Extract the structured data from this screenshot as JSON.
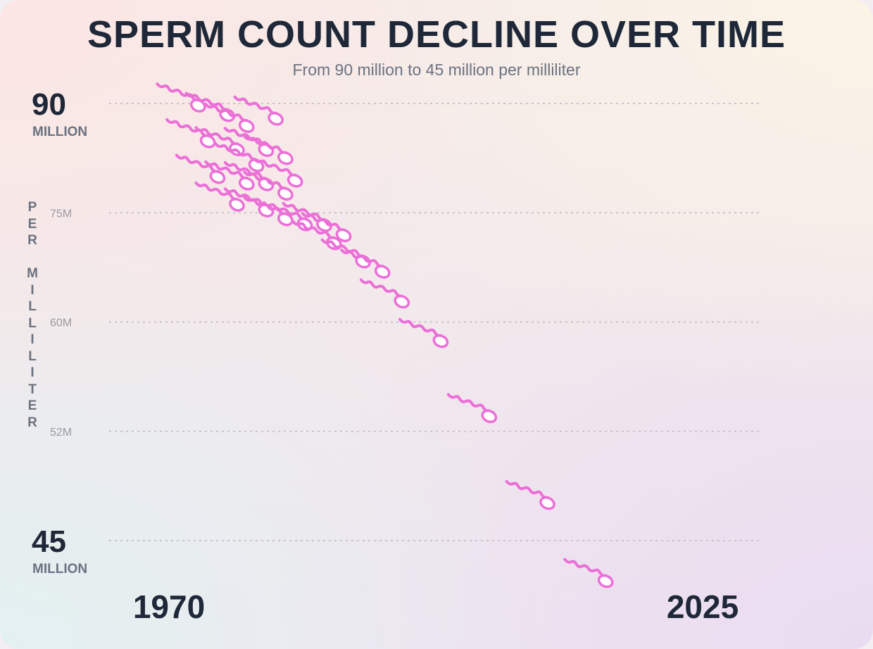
{
  "chart_data": {
    "type": "scatter",
    "title": "SPERM COUNT DECLINE OVER TIME",
    "subtitle": "From 90 million to 45 million per milliliter",
    "ylabel": "PER MILLILITER",
    "x_labels": [
      "1970",
      "2025"
    ],
    "y_ticks": [
      {
        "value": 90,
        "label": "90",
        "sublabel": "MILLION"
      },
      {
        "value": 75,
        "label": "75M"
      },
      {
        "value": 60,
        "label": "60M"
      },
      {
        "value": 52,
        "label": "52M"
      },
      {
        "value": 45,
        "label": "45",
        "sublabel": "MILLION"
      }
    ],
    "grid": true,
    "marker": "sperm-icon",
    "colors": {
      "marker": "#ec6fd8",
      "grid": "#c9c4cb",
      "title": "#1e2838",
      "muted": "#6b7280"
    },
    "points": [
      {
        "x": 1973,
        "y": 89.7
      },
      {
        "x": 1976,
        "y": 88.4
      },
      {
        "x": 1978,
        "y": 86.9
      },
      {
        "x": 1981,
        "y": 87.9
      },
      {
        "x": 1974,
        "y": 84.8
      },
      {
        "x": 1977,
        "y": 83.7
      },
      {
        "x": 1980,
        "y": 83.6
      },
      {
        "x": 1982,
        "y": 82.5
      },
      {
        "x": 1979,
        "y": 81.5
      },
      {
        "x": 1975,
        "y": 79.9
      },
      {
        "x": 1978,
        "y": 79.0
      },
      {
        "x": 1983,
        "y": 79.4
      },
      {
        "x": 1980,
        "y": 78.9
      },
      {
        "x": 1982,
        "y": 77.6
      },
      {
        "x": 1977,
        "y": 76.1
      },
      {
        "x": 1980,
        "y": 75.3
      },
      {
        "x": 1982,
        "y": 74.1
      },
      {
        "x": 1984,
        "y": 73.4
      },
      {
        "x": 1986,
        "y": 73.3
      },
      {
        "x": 1988,
        "y": 71.9
      },
      {
        "x": 1987,
        "y": 70.8
      },
      {
        "x": 1990,
        "y": 68.3
      },
      {
        "x": 1992,
        "y": 66.9
      },
      {
        "x": 1994,
        "y": 62.8
      },
      {
        "x": 1998,
        "y": 58.6
      },
      {
        "x": 2003,
        "y": 53.1
      },
      {
        "x": 2009,
        "y": 47.4
      },
      {
        "x": 2015,
        "y": 42.4
      }
    ]
  }
}
